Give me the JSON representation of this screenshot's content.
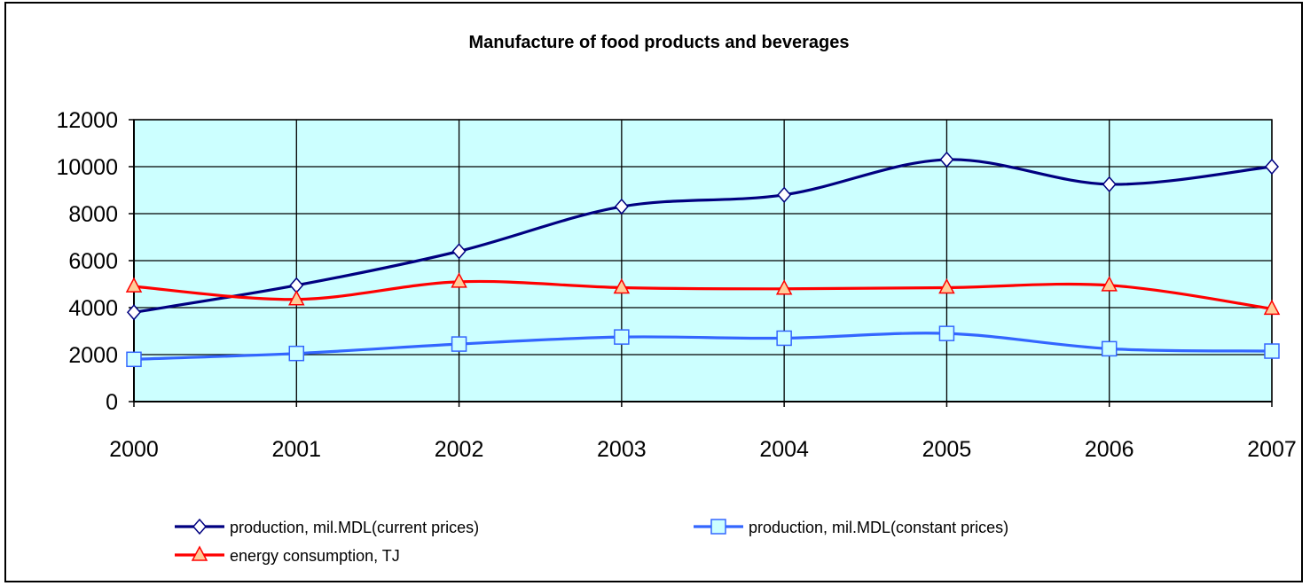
{
  "chart_data": {
    "type": "line",
    "title": "Manufacture of food products and beverages",
    "xlabel": "",
    "ylabel": "",
    "categories": [
      "2000",
      "2001",
      "2002",
      "2003",
      "2004",
      "2005",
      "2006",
      "2007"
    ],
    "y_ticks": [
      "0",
      "2000",
      "4000",
      "6000",
      "8000",
      "10000",
      "12000"
    ],
    "ylim": [
      0,
      12000
    ],
    "grid": true,
    "plot_background": "#ccffff",
    "legend_position": "bottom",
    "series": [
      {
        "name": "production, mil.MDL(current prices)",
        "values": [
          3800,
          4950,
          6400,
          8300,
          8800,
          10300,
          9250,
          10000
        ],
        "color": "#000080",
        "marker_fill": "#ffffff",
        "marker": "diamond"
      },
      {
        "name": "production, mil.MDL(constant prices)",
        "values": [
          1800,
          2050,
          2450,
          2750,
          2700,
          2900,
          2250,
          2150
        ],
        "color": "#3366ff",
        "marker_fill": "#ccffff",
        "marker": "square"
      },
      {
        "name": "energy consumption, TJ",
        "values": [
          4900,
          4350,
          5100,
          4850,
          4800,
          4850,
          4950,
          3950
        ],
        "color": "#ff0000",
        "marker_fill": "#ffcc99",
        "marker": "triangle"
      }
    ]
  }
}
